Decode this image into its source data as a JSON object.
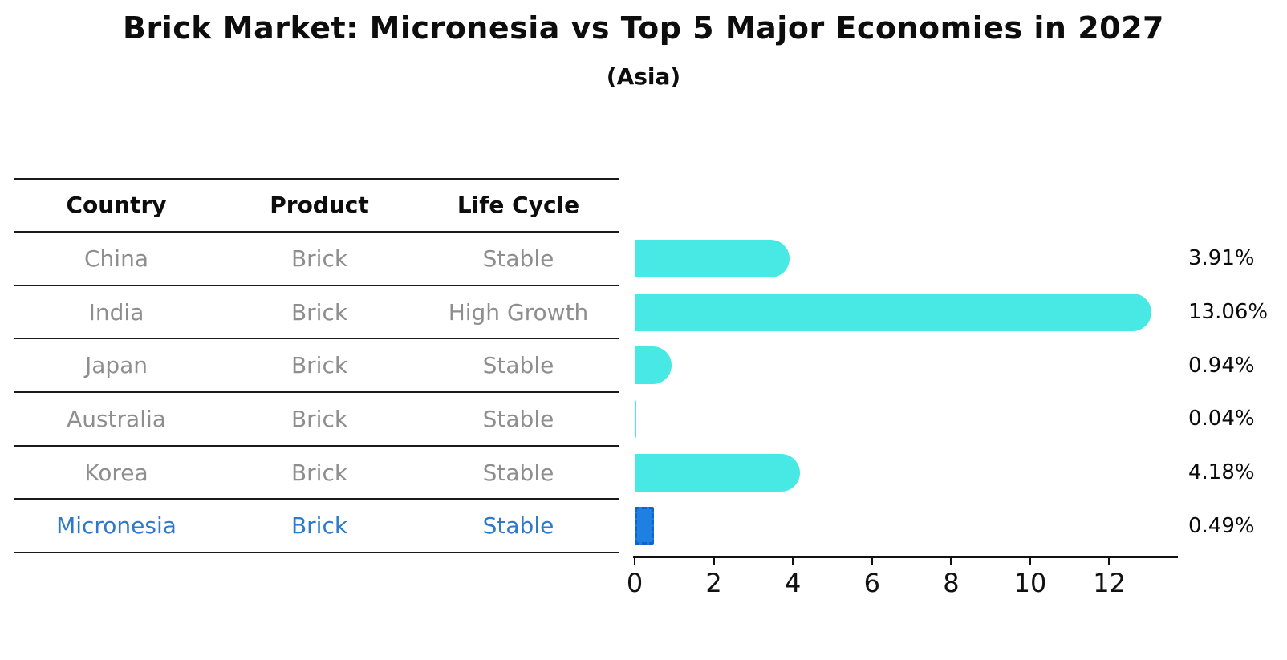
{
  "title": "Brick Market: Micronesia vs Top 5 Major Economies in 2027",
  "subtitle": "(Asia)",
  "colors": {
    "bar_cyan": "#48E8E4",
    "highlight_bar_fill": "#1E80E0",
    "highlight_bar_border": "#1361CE",
    "highlight_text": "#2D7AC8",
    "table_header_text": "#0d0d0d",
    "table_cell_text": "#8e8e8e",
    "table_line": "#1a1a1a",
    "axis": "#111111",
    "value_label_text": "#0a0a0a"
  },
  "chart_data": {
    "type": "bar",
    "orientation": "horizontal",
    "title": "Brick Market: Micronesia vs Top 5 Major Economies in 2027",
    "subtitle": "(Asia)",
    "table_columns": [
      "Country",
      "Product",
      "Life Cycle"
    ],
    "rows": [
      {
        "country": "China",
        "product": "Brick",
        "life_cycle": "Stable",
        "value": 3.91,
        "value_label": "3.91%",
        "highlighted": false
      },
      {
        "country": "India",
        "product": "Brick",
        "life_cycle": "High Growth",
        "value": 13.06,
        "value_label": "13.06%",
        "highlighted": false
      },
      {
        "country": "Japan",
        "product": "Brick",
        "life_cycle": "Stable",
        "value": 0.94,
        "value_label": "0.94%",
        "highlighted": false
      },
      {
        "country": "Australia",
        "product": "Brick",
        "life_cycle": "Stable",
        "value": 0.04,
        "value_label": "0.04%",
        "highlighted": false
      },
      {
        "country": "Korea",
        "product": "Brick",
        "life_cycle": "Stable",
        "value": 4.18,
        "value_label": "4.18%",
        "highlighted": false
      },
      {
        "country": "Micronesia",
        "product": "Brick",
        "life_cycle": "Stable",
        "value": 0.49,
        "value_label": "0.49%",
        "highlighted": true
      }
    ],
    "x_ticks": [
      0,
      2,
      4,
      6,
      8,
      10,
      12
    ],
    "xlim": [
      0,
      13.7
    ],
    "ylabel": "",
    "xlabel": "",
    "grid": false,
    "legend": false
  }
}
